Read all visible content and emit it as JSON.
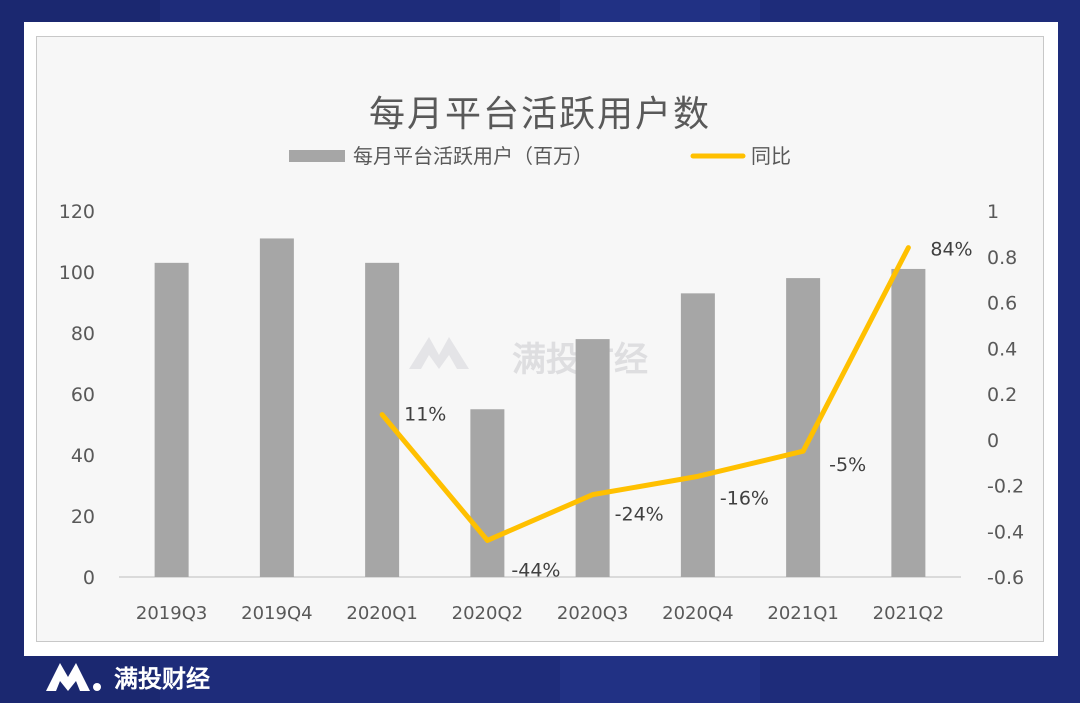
{
  "chart_data": {
    "type": "bar+line",
    "title": "每月平台活跃用户数",
    "categories": [
      "2019Q3",
      "2019Q4",
      "2020Q1",
      "2020Q2",
      "2020Q3",
      "2020Q4",
      "2021Q1",
      "2021Q2"
    ],
    "series": [
      {
        "name": "每月平台活跃用户（百万）",
        "type": "bar",
        "axis": "left",
        "color": "#a6a6a6",
        "values": [
          103,
          111,
          103,
          55,
          78,
          93,
          98,
          101
        ]
      },
      {
        "name": "同比",
        "type": "line",
        "axis": "right",
        "color": "#ffc000",
        "values": [
          null,
          null,
          0.11,
          -0.44,
          -0.24,
          -0.16,
          -0.05,
          0.84
        ],
        "labels": [
          "",
          "",
          "11%",
          "-44%",
          "-24%",
          "-16%",
          "-5%",
          "84%"
        ]
      }
    ],
    "y_left": {
      "min": 0,
      "max": 120,
      "ticks": [
        "0",
        "20",
        "40",
        "60",
        "80",
        "100",
        "120"
      ]
    },
    "y_right": {
      "min": -0.6,
      "max": 1,
      "ticks": [
        "-0.6",
        "-0.4",
        "-0.2",
        "0",
        "0.2",
        "0.4",
        "0.6",
        "0.8",
        "1"
      ]
    },
    "grid": false,
    "legend": "top-center"
  },
  "watermark": "满投财经",
  "brand": {
    "text": "满投财经"
  },
  "colors": {
    "background": "#1e2c7a",
    "bar": "#a6a6a6",
    "line": "#ffc000"
  }
}
